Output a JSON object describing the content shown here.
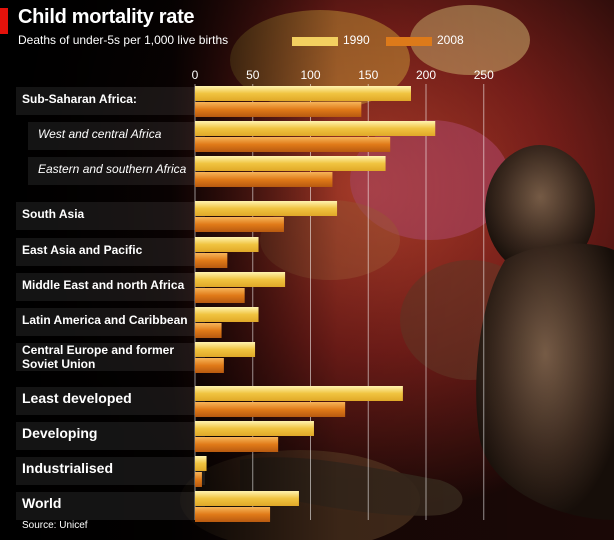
{
  "chart_data": {
    "type": "bar",
    "orientation": "horizontal",
    "title": "Child mortality rate",
    "subtitle": "Deaths of under-5s per 1,000 live births",
    "source": "Source: Unicef",
    "xlim": [
      0,
      250
    ],
    "xticks": [
      "0",
      "50",
      "100",
      "150",
      "200",
      "250"
    ],
    "grid": true,
    "legend_position": "top-right",
    "series": [
      {
        "name": "1990",
        "color": "#f3d060",
        "values": [
          187,
          208,
          165,
          123,
          55,
          78,
          55,
          52,
          180,
          103,
          10,
          90
        ]
      },
      {
        "name": "2008",
        "color": "#dd7a1a",
        "values": [
          144,
          169,
          119,
          77,
          28,
          43,
          23,
          25,
          130,
          72,
          6,
          65
        ]
      }
    ],
    "categories": [
      {
        "label": "Sub-Saharan Africa:",
        "style": "bold"
      },
      {
        "label": "West and central Africa",
        "style": "italic"
      },
      {
        "label": "Eastern and southern Africa",
        "style": "italic"
      },
      {
        "label": "South Asia",
        "style": "normal"
      },
      {
        "label": "East Asia and Pacific",
        "style": "normal"
      },
      {
        "label": "Middle East and north Africa",
        "style": "normal"
      },
      {
        "label": "Latin America and Caribbean",
        "style": "normal"
      },
      {
        "label": "Central Europe and former Soviet Union",
        "style": "normal"
      },
      {
        "label": "Least developed",
        "style": "big"
      },
      {
        "label": "Developing",
        "style": "big"
      },
      {
        "label": "Industrialised",
        "style": "big"
      },
      {
        "label": "World",
        "style": "big"
      }
    ]
  }
}
